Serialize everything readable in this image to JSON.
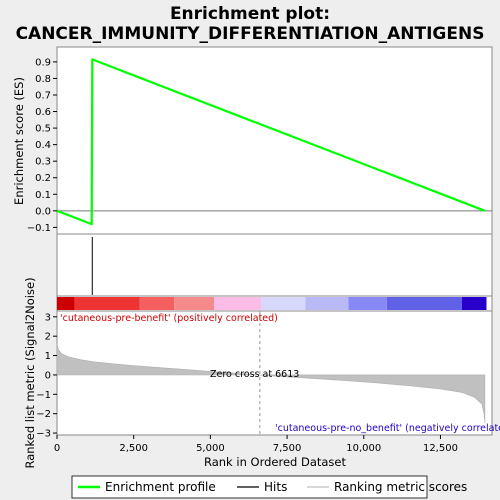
{
  "chart_data": {
    "type": "line",
    "title_line1": "Enrichment plot:",
    "title_line2": "CANCER_IMMUNITY_DIFFERENTIATION_ANTIGENS",
    "ylabel_top": "Enrichment score (ES)",
    "ylabel_bottom": "Ranked list metric (Signal2Noise)",
    "xlabel": "Rank in Ordered Dataset",
    "xlim": [
      0,
      14180
    ],
    "x_ticks": [
      0,
      2500,
      5000,
      7500,
      10000,
      12500
    ],
    "x_tick_labels": [
      "0",
      "2,500",
      "5,000",
      "7,500",
      "10,000",
      "12,500"
    ],
    "es_ylim": [
      -0.14,
      0.99
    ],
    "es_ticks": [
      -0.1,
      0.0,
      0.1,
      0.2,
      0.3,
      0.4,
      0.5,
      0.6,
      0.7,
      0.8,
      0.9
    ],
    "es_tick_labels": [
      "−0.1",
      "0.0",
      "0.1",
      "0.2",
      "0.3",
      "0.4",
      "0.5",
      "0.6",
      "0.7",
      "0.8",
      "0.9"
    ],
    "enrichment_profile": {
      "name": "Enrichment profile",
      "color": "#00ff00",
      "x": [
        0,
        1130,
        1150,
        13950
      ],
      "y": [
        0.0,
        -0.08,
        0.915,
        0.0
      ]
    },
    "hits": {
      "name": "Hits",
      "x": [
        1150
      ]
    },
    "metric_ylim": [
      -3.1,
      3.3
    ],
    "metric_ticks": [
      3,
      2,
      1,
      0,
      -1,
      -2,
      -3
    ],
    "metric_tick_labels": [
      "3",
      "2",
      "1",
      "0",
      "−1",
      "−2",
      "−3"
    ],
    "ranking_metric": {
      "name": "Ranking metric scores",
      "x": [
        0,
        50,
        150,
        400,
        800,
        1200,
        2000,
        3000,
        4000,
        5000,
        6000,
        6613,
        7500,
        8500,
        9500,
        10500,
        11500,
        12500,
        13200,
        13600,
        13850,
        13920,
        13950
      ],
      "y": [
        1.6,
        1.3,
        1.1,
        0.92,
        0.78,
        0.68,
        0.55,
        0.42,
        0.3,
        0.18,
        0.07,
        0.0,
        -0.1,
        -0.2,
        -0.3,
        -0.42,
        -0.56,
        -0.72,
        -0.9,
        -1.15,
        -1.5,
        -2.0,
        -2.5
      ]
    },
    "color_bar": [
      "#cc0000",
      "#ee3333",
      "#f55f5f",
      "#f58a8a",
      "#fbbde6",
      "#d8d8fb",
      "#b9b9f8",
      "#8888f5",
      "#6161e8",
      "#2800cc"
    ],
    "color_bar_breaks": [
      0,
      580,
      2700,
      3820,
      5120,
      6650,
      8100,
      9500,
      10750,
      13200,
      14000
    ],
    "label_pos": "'cutaneous-pre-benefit' (positively correlated)",
    "label_neg": "'cutaneous-pre-no_benefit' (negatively correlated)",
    "zero_cross_label": "Zero cross at 6613",
    "zero_cross_x": 6613,
    "label_pos_color": "#cc0000",
    "label_neg_color": "#2200cc",
    "legend": [
      {
        "label": "Enrichment profile",
        "color": "#00ff00",
        "kind": "line"
      },
      {
        "label": "Hits",
        "color": "#000000",
        "kind": "line"
      },
      {
        "label": "Ranking metric scores",
        "color": "#c0c0c0",
        "kind": "line"
      }
    ]
  }
}
